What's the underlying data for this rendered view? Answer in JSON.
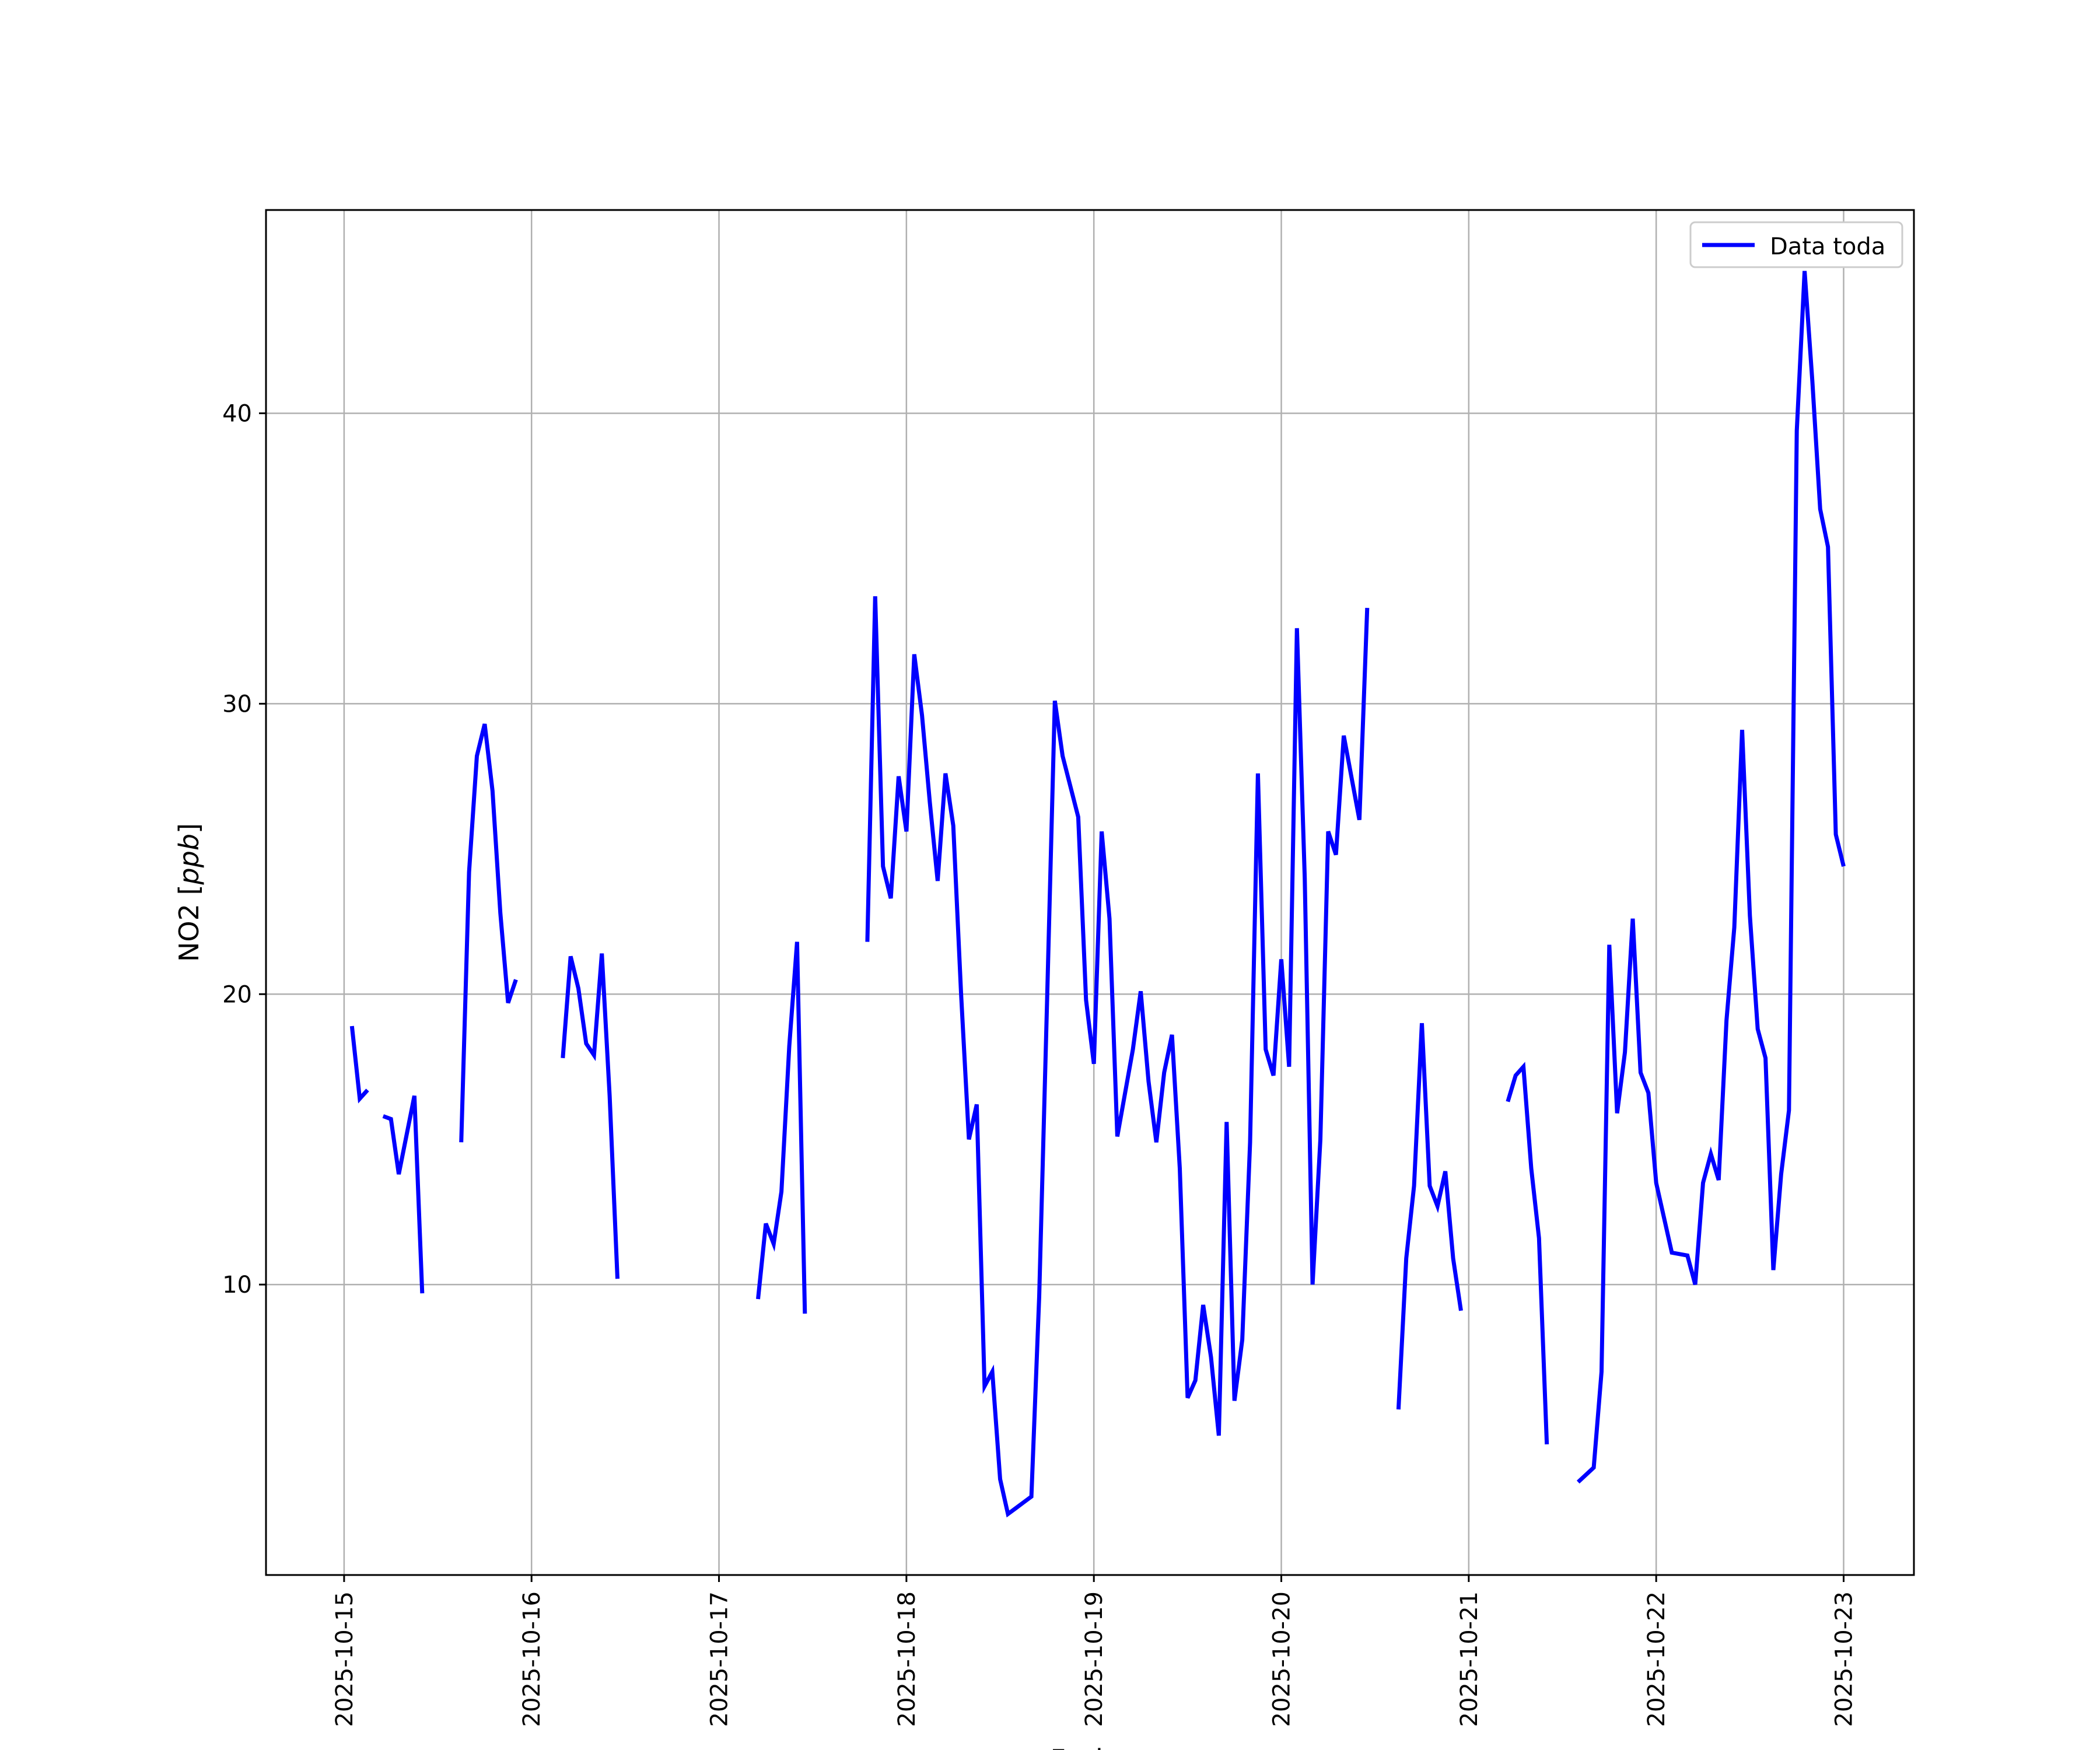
{
  "chart_data": {
    "type": "line",
    "xlabel": "Fecha",
    "ylabel_main": "NO2 [",
    "ylabel_unit": "ppb",
    "ylabel_end": "]",
    "ylim": [
      0,
      47
    ],
    "yticks": [
      10,
      20,
      30,
      40
    ],
    "xlim": [
      "2025-10-14T14:00",
      "2025-10-23T09:00"
    ],
    "xticks": [
      "2025-10-15",
      "2025-10-16",
      "2025-10-17",
      "2025-10-18",
      "2025-10-19",
      "2025-10-20",
      "2025-10-21",
      "2025-10-22",
      "2025-10-23"
    ],
    "grid": true,
    "legend_position": "top-right",
    "color": "#0000ff",
    "series": [
      {
        "name": "Data toda",
        "segments": [
          [
            [
              "2025-10-15T01:00",
              18.9
            ],
            [
              "2025-10-15T02:00",
              16.4
            ],
            [
              "2025-10-15T03:00",
              16.7
            ]
          ],
          [
            [
              "2025-10-15T05:00",
              15.8
            ],
            [
              "2025-10-15T06:00",
              15.7
            ],
            [
              "2025-10-15T07:00",
              13.8
            ],
            [
              "2025-10-15T09:00",
              16.5
            ],
            [
              "2025-10-15T10:00",
              9.7
            ]
          ],
          [
            [
              "2025-10-15T15:00",
              14.9
            ],
            [
              "2025-10-15T16:00",
              24.2
            ],
            [
              "2025-10-15T17:00",
              28.2
            ],
            [
              "2025-10-15T18:00",
              29.3
            ],
            [
              "2025-10-15T19:00",
              27.0
            ],
            [
              "2025-10-15T20:00",
              22.8
            ],
            [
              "2025-10-15T21:00",
              19.7
            ],
            [
              "2025-10-15T22:00",
              20.5
            ]
          ],
          [
            [
              "2025-10-16T04:00",
              17.8
            ],
            [
              "2025-10-16T05:00",
              21.3
            ],
            [
              "2025-10-16T06:00",
              20.2
            ],
            [
              "2025-10-16T07:00",
              18.3
            ],
            [
              "2025-10-16T08:00",
              17.9
            ],
            [
              "2025-10-16T09:00",
              21.4
            ],
            [
              "2025-10-16T10:00",
              16.5
            ],
            [
              "2025-10-16T11:00",
              10.2
            ]
          ],
          [
            [
              "2025-10-17T05:00",
              9.5
            ],
            [
              "2025-10-17T06:00",
              12.1
            ],
            [
              "2025-10-17T07:00",
              11.4
            ],
            [
              "2025-10-17T08:00",
              13.2
            ],
            [
              "2025-10-17T09:00",
              18.2
            ],
            [
              "2025-10-17T10:00",
              21.8
            ],
            [
              "2025-10-17T11:00",
              9.0
            ]
          ],
          [
            [
              "2025-10-17T19:00",
              21.8
            ],
            [
              "2025-10-17T20:00",
              33.7
            ],
            [
              "2025-10-17T21:00",
              24.4
            ],
            [
              "2025-10-17T22:00",
              23.3
            ],
            [
              "2025-10-17T23:00",
              27.5
            ],
            [
              "2025-10-18T00:00",
              25.6
            ],
            [
              "2025-10-18T01:00",
              31.7
            ],
            [
              "2025-10-18T02:00",
              29.6
            ],
            [
              "2025-10-18T03:00",
              26.6
            ],
            [
              "2025-10-18T04:00",
              23.9
            ],
            [
              "2025-10-18T05:00",
              27.6
            ],
            [
              "2025-10-18T06:00",
              25.8
            ],
            [
              "2025-10-18T07:00",
              20.0
            ],
            [
              "2025-10-18T08:00",
              15.0
            ],
            [
              "2025-10-18T09:00",
              16.2
            ],
            [
              "2025-10-18T10:00",
              6.5
            ],
            [
              "2025-10-18T11:00",
              7.0
            ],
            [
              "2025-10-18T12:00",
              3.3
            ],
            [
              "2025-10-18T13:00",
              2.1
            ],
            [
              "2025-10-18T14:00",
              2.3
            ],
            [
              "2025-10-18T15:00",
              2.5
            ],
            [
              "2025-10-18T16:00",
              2.7
            ],
            [
              "2025-10-18T17:00",
              9.6
            ],
            [
              "2025-10-18T18:00",
              19.7
            ],
            [
              "2025-10-18T19:00",
              30.1
            ],
            [
              "2025-10-18T20:00",
              28.2
            ],
            [
              "2025-10-18T22:00",
              26.1
            ],
            [
              "2025-10-18T23:00",
              19.8
            ],
            [
              "2025-10-19T00:00",
              17.6
            ],
            [
              "2025-10-19T01:00",
              25.6
            ],
            [
              "2025-10-19T02:00",
              22.6
            ],
            [
              "2025-10-19T03:00",
              15.1
            ],
            [
              "2025-10-19T05:00",
              18.1
            ],
            [
              "2025-10-19T06:00",
              20.1
            ],
            [
              "2025-10-19T07:00",
              17.0
            ],
            [
              "2025-10-19T08:00",
              14.9
            ],
            [
              "2025-10-19T09:00",
              17.3
            ],
            [
              "2025-10-19T10:00",
              18.6
            ],
            [
              "2025-10-19T11:00",
              14.0
            ],
            [
              "2025-10-19T12:00",
              6.1
            ],
            [
              "2025-10-19T13:00",
              6.7
            ],
            [
              "2025-10-19T14:00",
              9.3
            ],
            [
              "2025-10-19T15:00",
              7.5
            ],
            [
              "2025-10-19T16:00",
              4.8
            ],
            [
              "2025-10-19T17:00",
              15.6
            ],
            [
              "2025-10-19T18:00",
              6.0
            ],
            [
              "2025-10-19T19:00",
              8.1
            ],
            [
              "2025-10-19T20:00",
              14.9
            ],
            [
              "2025-10-19T21:00",
              27.6
            ],
            [
              "2025-10-19T22:00",
              18.1
            ],
            [
              "2025-10-19T23:00",
              17.2
            ],
            [
              "2025-10-20T00:00",
              21.2
            ],
            [
              "2025-10-20T01:00",
              17.5
            ],
            [
              "2025-10-20T02:00",
              32.6
            ],
            [
              "2025-10-20T03:00",
              24.0
            ],
            [
              "2025-10-20T04:00",
              10.0
            ],
            [
              "2025-10-20T05:00",
              15.0
            ],
            [
              "2025-10-20T06:00",
              25.6
            ],
            [
              "2025-10-20T07:00",
              24.8
            ],
            [
              "2025-10-20T08:00",
              28.9
            ],
            [
              "2025-10-20T10:00",
              26.0
            ],
            [
              "2025-10-20T11:00",
              33.3
            ]
          ],
          [
            [
              "2025-10-20T15:00",
              5.7
            ],
            [
              "2025-10-20T16:00",
              10.9
            ],
            [
              "2025-10-20T17:00",
              13.4
            ],
            [
              "2025-10-20T18:00",
              19.0
            ],
            [
              "2025-10-20T19:00",
              13.4
            ],
            [
              "2025-10-20T20:00",
              12.7
            ],
            [
              "2025-10-20T21:00",
              13.9
            ],
            [
              "2025-10-20T22:00",
              10.9
            ],
            [
              "2025-10-20T23:00",
              9.1
            ]
          ],
          [
            [
              "2025-10-21T05:00",
              16.3
            ],
            [
              "2025-10-21T06:00",
              17.2
            ],
            [
              "2025-10-21T07:00",
              17.5
            ],
            [
              "2025-10-21T08:00",
              14.0
            ],
            [
              "2025-10-21T09:00",
              11.6
            ],
            [
              "2025-10-21T10:00",
              4.5
            ]
          ],
          [
            [
              "2025-10-21T14:00",
              3.2
            ],
            [
              "2025-10-21T16:00",
              3.7
            ],
            [
              "2025-10-21T17:00",
              7.0
            ],
            [
              "2025-10-21T18:00",
              21.7
            ],
            [
              "2025-10-21T19:00",
              15.9
            ],
            [
              "2025-10-21T20:00",
              18.0
            ],
            [
              "2025-10-21T21:00",
              22.6
            ],
            [
              "2025-10-21T22:00",
              17.3
            ],
            [
              "2025-10-21T23:00",
              16.6
            ],
            [
              "2025-10-22T00:00",
              13.5
            ],
            [
              "2025-10-22T01:00",
              12.3
            ],
            [
              "2025-10-22T02:00",
              11.1
            ],
            [
              "2025-10-22T04:00",
              11.0
            ],
            [
              "2025-10-22T05:00",
              10.0
            ],
            [
              "2025-10-22T06:00",
              13.5
            ],
            [
              "2025-10-22T07:00",
              14.5
            ],
            [
              "2025-10-22T08:00",
              13.6
            ],
            [
              "2025-10-22T09:00",
              19.1
            ],
            [
              "2025-10-22T10:00",
              22.3
            ],
            [
              "2025-10-22T11:00",
              29.1
            ],
            [
              "2025-10-22T12:00",
              22.7
            ],
            [
              "2025-10-22T13:00",
              18.8
            ],
            [
              "2025-10-22T14:00",
              17.8
            ],
            [
              "2025-10-22T15:00",
              10.5
            ],
            [
              "2025-10-22T16:00",
              13.8
            ],
            [
              "2025-10-22T17:00",
              16.0
            ],
            [
              "2025-10-22T18:00",
              39.4
            ],
            [
              "2025-10-22T19:00",
              44.9
            ],
            [
              "2025-10-22T20:00",
              41.1
            ],
            [
              "2025-10-22T21:00",
              36.7
            ],
            [
              "2025-10-22T22:00",
              35.4
            ],
            [
              "2025-10-22T23:00",
              25.5
            ],
            [
              "2025-10-23T00:00",
              24.4
            ]
          ]
        ]
      }
    ]
  }
}
